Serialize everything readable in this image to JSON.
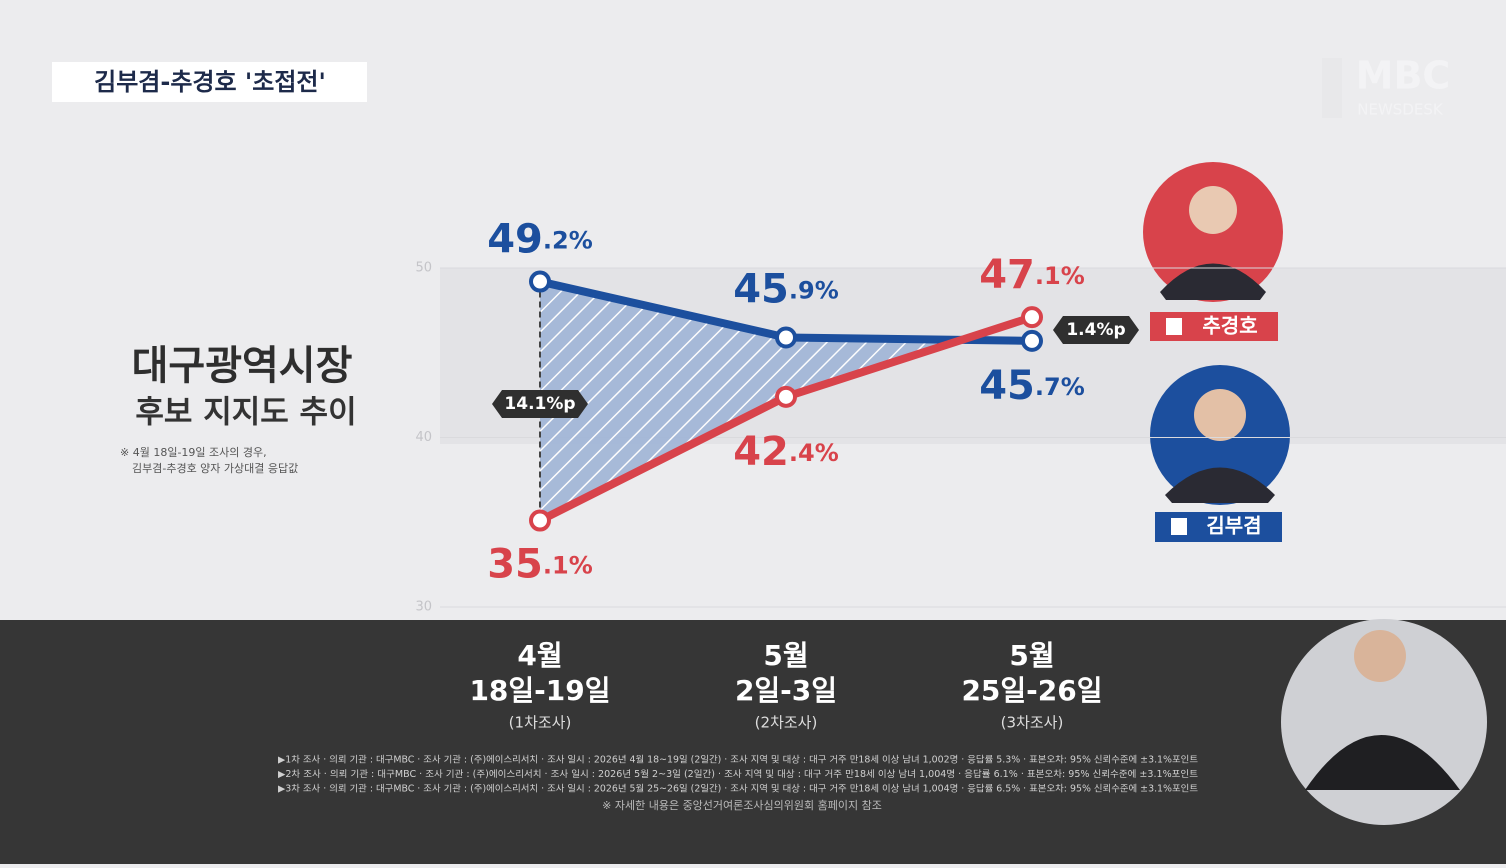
{
  "header": {
    "title": "김부겸-추경호 '초접전'",
    "logo": "MBC",
    "logo_sub": "NEWSDESK"
  },
  "chart_data": {
    "type": "line",
    "title": "대구광역시장",
    "subtitle": "후보 지지도 추이",
    "notes": [
      "※ 4월 18일-19일 조사의 경우,",
      "김부겸-추경호 양자 가상대결 응답값"
    ],
    "categories": [
      "4월",
      "5월",
      "5월"
    ],
    "category_dates": [
      "18일-19일",
      "2일-3일",
      "25일-26일"
    ],
    "category_rounds": [
      "(1차조사)",
      "(2차조사)",
      "(3차조사)"
    ],
    "ylim": [
      30,
      50
    ],
    "yticks": [
      30,
      40,
      50
    ],
    "series": [
      {
        "name": "김부겸",
        "color": "#1c4f9e",
        "values": [
          49.2,
          45.9,
          45.7
        ],
        "value_labels": [
          "49.2%",
          "45.9%",
          "45.7%"
        ]
      },
      {
        "name": "추경호",
        "color": "#d8434b",
        "values": [
          35.1,
          42.4,
          47.1
        ],
        "value_labels": [
          "35.1%",
          "42.4%",
          "47.1%"
        ]
      }
    ],
    "annotations": [
      "14.1%p",
      "1.4%p"
    ]
  },
  "footer": {
    "lines": [
      "▶1차 조사 · 의뢰 기관 : 대구MBC · 조사 기관 : (주)에이스리서치 · 조사 일시 : 2026년 4월 18~19일 (2일간) · 조사 지역 및 대상 : 대구 거주 만18세 이상 남녀 1,002명 · 응답률 5.3% · 표본오차: 95% 신뢰수준에 ±3.1%포인트",
      "▶2차 조사 · 의뢰 기관 : 대구MBC · 조사 기관 : (주)에이스리서치 · 조사 일시 : 2026년 5월 2~3일 (2일간) · 조사 지역 및 대상 : 대구 거주 만18세 이상 남녀 1,004명 · 응답률 6.1% · 표본오차: 95% 신뢰수준에 ±3.1%포인트",
      "▶3차 조사 · 의뢰 기관 : 대구MBC · 조사 기관 : (주)에이스리서치 · 조사 일시 : 2026년 5월 25~26일 (2일간) · 조사 지역 및 대상 : 대구 거주 만18세 이상 남녀 1,004명 · 응답률 6.5% · 표본오차: 95% 신뢰수준에 ±3.1%포인트"
    ],
    "note": "※ 자세한 내용은 중앙선거여론조사심의위원회 홈페이지 참조"
  }
}
